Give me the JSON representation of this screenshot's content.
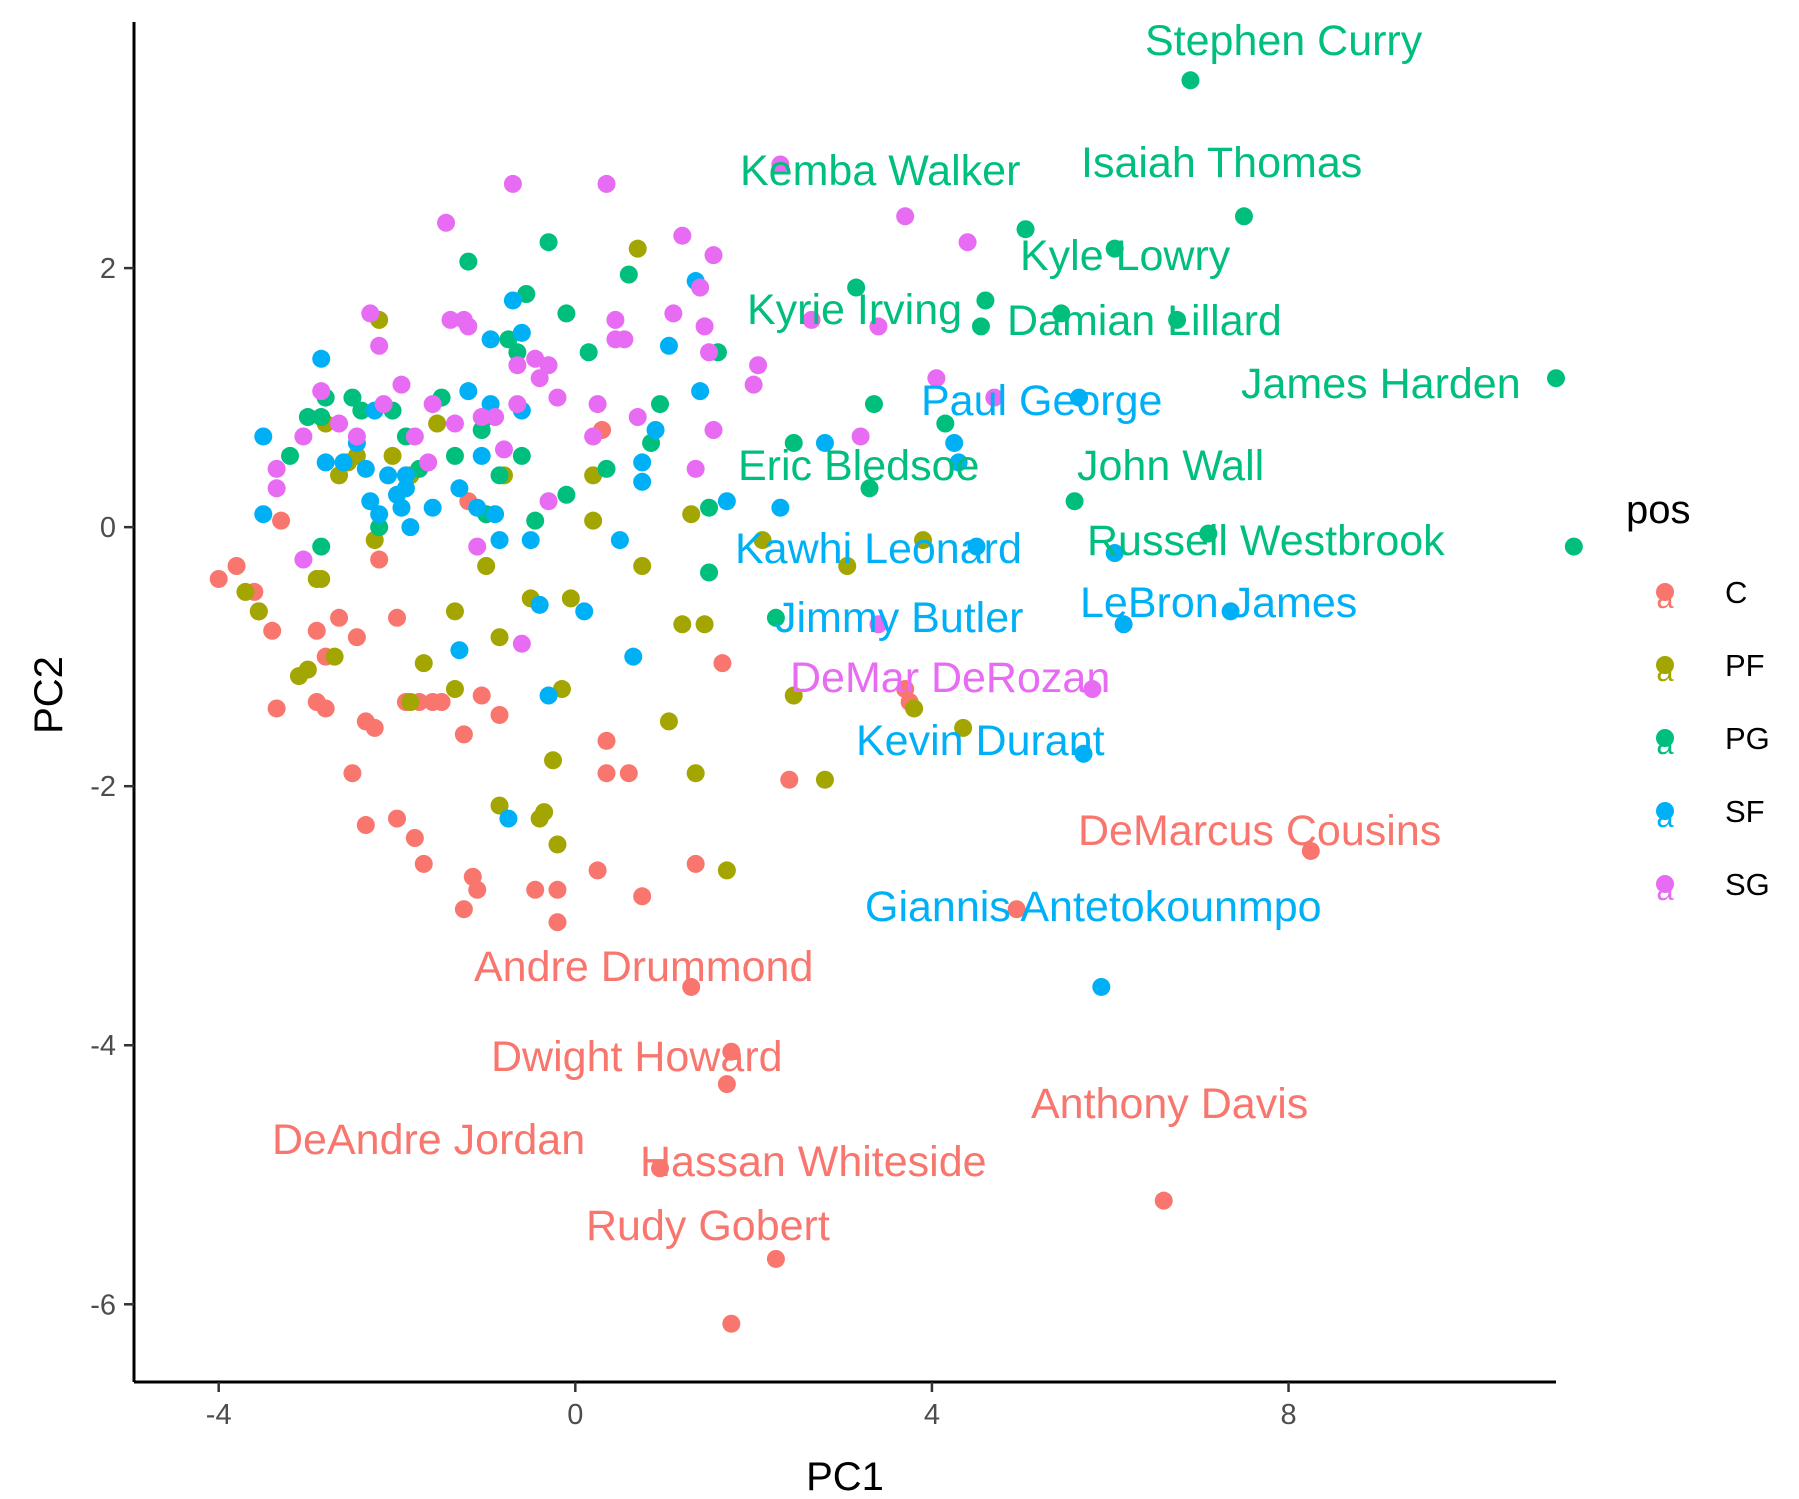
{
  "chart_data": {
    "type": "scatter",
    "xlabel": "PC1",
    "ylabel": "PC2",
    "xlim": [
      -4.95,
      11.0
    ],
    "ylim": [
      -6.6,
      3.9
    ],
    "x_ticks": [
      -4,
      0,
      4,
      8
    ],
    "y_ticks": [
      -6,
      -4,
      -2,
      0,
      2
    ],
    "x_tick_labels": [
      "-4",
      "0",
      "4",
      "8"
    ],
    "y_tick_labels": [
      "-6",
      "-4",
      "-2",
      "0",
      "2"
    ],
    "grid": false,
    "legend": {
      "title": "pos",
      "placement": "right",
      "entries": [
        {
          "label": "C",
          "color": "#F8766D"
        },
        {
          "label": "PF",
          "color": "#A3A500"
        },
        {
          "label": "PG",
          "color": "#00BF7D"
        },
        {
          "label": "SF",
          "color": "#00B0F6"
        },
        {
          "label": "SG",
          "color": "#E76BF3"
        }
      ],
      "key_glyph": "a"
    },
    "series": [
      {
        "name": "C",
        "color": "#F8766D",
        "points": [
          [
            -4.0,
            -0.4
          ],
          [
            -3.8,
            -0.3
          ],
          [
            -3.6,
            -0.5
          ],
          [
            -3.4,
            -0.8
          ],
          [
            -3.55,
            -0.65
          ],
          [
            -3.35,
            -1.4
          ],
          [
            -3.3,
            0.05
          ],
          [
            -2.9,
            -0.8
          ],
          [
            -2.8,
            -1.0
          ],
          [
            -2.9,
            -1.35
          ],
          [
            -2.8,
            -1.4
          ],
          [
            -2.65,
            -0.7
          ],
          [
            -2.45,
            -0.85
          ],
          [
            -2.35,
            -1.5
          ],
          [
            -2.25,
            -1.55
          ],
          [
            -2.5,
            -1.9
          ],
          [
            -2.35,
            -2.3
          ],
          [
            -2.2,
            -0.25
          ],
          [
            -2.0,
            -0.7
          ],
          [
            -1.9,
            -1.35
          ],
          [
            -1.75,
            -1.35
          ],
          [
            -1.6,
            -1.35
          ],
          [
            -1.5,
            -1.35
          ],
          [
            -2.0,
            -2.25
          ],
          [
            -1.8,
            -2.4
          ],
          [
            -1.7,
            -2.6
          ],
          [
            -1.25,
            -1.6
          ],
          [
            -1.05,
            -1.3
          ],
          [
            -0.85,
            -1.45
          ],
          [
            -1.15,
            -2.7
          ],
          [
            -1.1,
            -2.8
          ],
          [
            -1.25,
            -2.95
          ],
          [
            -0.45,
            -2.8
          ],
          [
            -0.2,
            -2.8
          ],
          [
            -0.2,
            -3.05
          ],
          [
            -1.2,
            0.2
          ],
          [
            0.3,
            0.75
          ],
          [
            0.35,
            -1.65
          ],
          [
            0.35,
            -1.9
          ],
          [
            0.6,
            -1.9
          ],
          [
            0.25,
            -2.65
          ],
          [
            0.75,
            -2.85
          ],
          [
            1.35,
            -2.6
          ],
          [
            1.65,
            -1.05
          ],
          [
            2.4,
            -1.95
          ],
          [
            3.7,
            -1.25
          ],
          [
            3.75,
            -1.35
          ],
          [
            1.3,
            -3.55
          ],
          [
            1.75,
            -4.05
          ],
          [
            1.7,
            -4.3
          ],
          [
            0.95,
            -4.95
          ],
          [
            2.25,
            -5.65
          ],
          [
            1.75,
            -6.15
          ],
          [
            4.95,
            -2.95
          ],
          [
            8.25,
            -2.5
          ],
          [
            6.6,
            -5.2
          ]
        ]
      },
      {
        "name": "PF",
        "color": "#A3A500",
        "points": [
          [
            -3.7,
            -0.5
          ],
          [
            -3.55,
            -0.65
          ],
          [
            -3.1,
            -1.15
          ],
          [
            -3.0,
            -1.1
          ],
          [
            -2.9,
            -0.4
          ],
          [
            -2.85,
            -0.4
          ],
          [
            -2.7,
            -1.0
          ],
          [
            -2.8,
            0.8
          ],
          [
            -2.65,
            0.4
          ],
          [
            -2.55,
            0.5
          ],
          [
            -2.45,
            0.55
          ],
          [
            -2.2,
            1.6
          ],
          [
            -2.25,
            -0.1
          ],
          [
            -2.05,
            0.55
          ],
          [
            -1.85,
            0.4
          ],
          [
            -1.7,
            -1.05
          ],
          [
            -1.85,
            -1.35
          ],
          [
            -1.55,
            0.8
          ],
          [
            -1.35,
            -0.65
          ],
          [
            -1.35,
            -1.25
          ],
          [
            -1.0,
            -0.3
          ],
          [
            -0.85,
            -0.85
          ],
          [
            -0.85,
            -2.15
          ],
          [
            -0.5,
            -0.55
          ],
          [
            -0.4,
            -2.25
          ],
          [
            -0.35,
            -2.2
          ],
          [
            -0.2,
            -2.45
          ],
          [
            -0.15,
            -1.25
          ],
          [
            -0.25,
            -1.8
          ],
          [
            -0.05,
            -0.55
          ],
          [
            0.2,
            0.05
          ],
          [
            0.2,
            0.4
          ],
          [
            0.7,
            2.15
          ],
          [
            0.75,
            -0.3
          ],
          [
            1.05,
            -1.5
          ],
          [
            1.2,
            -0.75
          ],
          [
            1.35,
            -1.9
          ],
          [
            1.45,
            -0.75
          ],
          [
            1.7,
            -2.65
          ],
          [
            2.1,
            -0.1
          ],
          [
            2.45,
            -1.3
          ],
          [
            2.8,
            -1.95
          ],
          [
            3.05,
            -0.3
          ],
          [
            3.8,
            -1.4
          ],
          [
            3.9,
            -0.1
          ],
          [
            4.35,
            -1.55
          ],
          [
            -0.8,
            0.4
          ],
          [
            1.3,
            0.1
          ]
        ]
      },
      {
        "name": "PG",
        "color": "#00BF7D",
        "points": [
          [
            -3.2,
            0.55
          ],
          [
            -3.0,
            0.85
          ],
          [
            -2.85,
            0.85
          ],
          [
            -2.8,
            1.0
          ],
          [
            -2.85,
            -0.15
          ],
          [
            -2.5,
            1.0
          ],
          [
            -2.4,
            0.9
          ],
          [
            -2.2,
            0.0
          ],
          [
            -2.05,
            0.9
          ],
          [
            -1.9,
            0.7
          ],
          [
            -1.75,
            0.45
          ],
          [
            -1.5,
            1.0
          ],
          [
            -1.35,
            0.55
          ],
          [
            -1.2,
            2.05
          ],
          [
            -1.0,
            0.1
          ],
          [
            -1.05,
            0.75
          ],
          [
            -0.85,
            0.4
          ],
          [
            -0.75,
            1.45
          ],
          [
            -0.6,
            0.55
          ],
          [
            -0.45,
            0.05
          ],
          [
            -0.55,
            1.8
          ],
          [
            -0.3,
            2.2
          ],
          [
            -0.1,
            1.65
          ],
          [
            -0.1,
            0.25
          ],
          [
            0.15,
            1.35
          ],
          [
            0.35,
            0.45
          ],
          [
            0.6,
            1.95
          ],
          [
            0.85,
            0.65
          ],
          [
            0.95,
            0.95
          ],
          [
            1.5,
            0.15
          ],
          [
            1.5,
            -0.35
          ],
          [
            1.6,
            1.35
          ],
          [
            2.25,
            -0.7
          ],
          [
            2.45,
            0.65
          ],
          [
            3.15,
            1.85
          ],
          [
            3.3,
            0.3
          ],
          [
            3.35,
            0.95
          ],
          [
            4.15,
            0.8
          ],
          [
            4.55,
            1.55
          ],
          [
            4.6,
            1.75
          ],
          [
            5.05,
            2.3
          ],
          [
            5.45,
            1.65
          ],
          [
            5.6,
            0.2
          ],
          [
            6.05,
            2.15
          ],
          [
            6.75,
            1.6
          ],
          [
            7.1,
            -0.05
          ],
          [
            7.5,
            2.4
          ],
          [
            6.9,
            3.45
          ],
          [
            11.0,
            1.15
          ],
          [
            11.2,
            -0.15
          ],
          [
            -1.0,
            0.85
          ],
          [
            -0.65,
            1.35
          ]
        ]
      },
      {
        "name": "SF",
        "color": "#00B0F6",
        "points": [
          [
            -3.5,
            0.7
          ],
          [
            -3.5,
            0.1
          ],
          [
            -2.85,
            1.3
          ],
          [
            -2.8,
            0.5
          ],
          [
            -2.6,
            0.5
          ],
          [
            -2.45,
            0.65
          ],
          [
            -2.35,
            0.45
          ],
          [
            -2.3,
            0.2
          ],
          [
            -2.25,
            0.9
          ],
          [
            -2.2,
            0.1
          ],
          [
            -2.1,
            0.4
          ],
          [
            -2.0,
            0.25
          ],
          [
            -1.9,
            0.4
          ],
          [
            -1.9,
            0.3
          ],
          [
            -1.95,
            0.15
          ],
          [
            -1.85,
            0.0
          ],
          [
            -1.6,
            0.15
          ],
          [
            -1.3,
            0.3
          ],
          [
            -1.2,
            1.05
          ],
          [
            -1.1,
            0.15
          ],
          [
            -1.05,
            0.55
          ],
          [
            -0.95,
            0.95
          ],
          [
            -0.9,
            0.1
          ],
          [
            -0.85,
            -0.1
          ],
          [
            -0.7,
            1.75
          ],
          [
            -0.6,
            1.5
          ],
          [
            -0.6,
            0.9
          ],
          [
            -0.5,
            -0.1
          ],
          [
            -0.4,
            -0.6
          ],
          [
            -0.3,
            -1.3
          ],
          [
            0.1,
            -0.65
          ],
          [
            0.5,
            -0.1
          ],
          [
            0.65,
            -1.0
          ],
          [
            0.75,
            0.35
          ],
          [
            0.75,
            0.5
          ],
          [
            0.9,
            0.75
          ],
          [
            1.05,
            1.4
          ],
          [
            1.35,
            1.9
          ],
          [
            1.4,
            1.05
          ],
          [
            1.7,
            0.2
          ],
          [
            2.3,
            0.15
          ],
          [
            2.8,
            0.65
          ],
          [
            4.25,
            0.65
          ],
          [
            4.3,
            0.5
          ],
          [
            4.5,
            -0.15
          ],
          [
            5.65,
            1.0
          ],
          [
            6.05,
            -0.2
          ],
          [
            6.15,
            -0.75
          ],
          [
            5.7,
            -1.75
          ],
          [
            7.35,
            -0.65
          ],
          [
            5.9,
            -3.55
          ],
          [
            -0.75,
            -2.25
          ],
          [
            -1.3,
            -0.95
          ],
          [
            -0.95,
            1.45
          ]
        ]
      },
      {
        "name": "SG",
        "color": "#E76BF3",
        "points": [
          [
            -3.35,
            0.45
          ],
          [
            -3.35,
            0.3
          ],
          [
            -3.05,
            0.7
          ],
          [
            -2.85,
            1.05
          ],
          [
            -2.65,
            0.8
          ],
          [
            -2.45,
            0.7
          ],
          [
            -2.3,
            1.65
          ],
          [
            -2.2,
            1.4
          ],
          [
            -2.15,
            0.95
          ],
          [
            -1.95,
            1.1
          ],
          [
            -1.8,
            0.7
          ],
          [
            -1.65,
            0.5
          ],
          [
            -1.6,
            0.95
          ],
          [
            -1.45,
            2.35
          ],
          [
            -1.4,
            1.6
          ],
          [
            -1.35,
            0.8
          ],
          [
            -1.25,
            1.6
          ],
          [
            -1.2,
            1.55
          ],
          [
            -1.05,
            0.85
          ],
          [
            -0.9,
            0.85
          ],
          [
            -0.8,
            0.6
          ],
          [
            -0.65,
            0.95
          ],
          [
            -0.65,
            1.25
          ],
          [
            -0.45,
            1.3
          ],
          [
            -0.4,
            1.15
          ],
          [
            -0.3,
            0.2
          ],
          [
            -0.3,
            1.25
          ],
          [
            -0.2,
            1.0
          ],
          [
            0.2,
            0.7
          ],
          [
            0.25,
            0.95
          ],
          [
            0.35,
            2.65
          ],
          [
            0.45,
            1.6
          ],
          [
            0.45,
            1.45
          ],
          [
            0.55,
            1.45
          ],
          [
            0.7,
            0.85
          ],
          [
            1.1,
            1.65
          ],
          [
            1.2,
            2.25
          ],
          [
            1.35,
            0.45
          ],
          [
            1.4,
            1.85
          ],
          [
            1.45,
            1.55
          ],
          [
            1.5,
            1.35
          ],
          [
            1.55,
            0.75
          ],
          [
            1.55,
            2.1
          ],
          [
            2.0,
            1.1
          ],
          [
            2.05,
            1.25
          ],
          [
            2.3,
            2.8
          ],
          [
            2.65,
            1.6
          ],
          [
            3.2,
            0.7
          ],
          [
            3.4,
            -0.75
          ],
          [
            3.4,
            1.55
          ],
          [
            3.7,
            2.4
          ],
          [
            4.05,
            1.15
          ],
          [
            4.4,
            2.2
          ],
          [
            4.7,
            1.0
          ],
          [
            5.8,
            -1.25
          ],
          [
            -3.05,
            -0.25
          ],
          [
            -0.6,
            -0.9
          ],
          [
            -0.7,
            2.65
          ],
          [
            -1.1,
            -0.15
          ]
        ]
      }
    ],
    "labels": [
      {
        "text": "Stephen Curry",
        "series": "PG"
      },
      {
        "text": "Kemba Walker",
        "series": "PG"
      },
      {
        "text": "Isaiah Thomas",
        "series": "PG"
      },
      {
        "text": "Kyle Lowry",
        "series": "PG"
      },
      {
        "text": "Kyrie Irving",
        "series": "PG"
      },
      {
        "text": "Damian Lillard",
        "series": "PG"
      },
      {
        "text": "James Harden",
        "series": "PG"
      },
      {
        "text": "Paul George",
        "series": "SF"
      },
      {
        "text": "Eric Bledsoe",
        "series": "PG"
      },
      {
        "text": "John Wall",
        "series": "PG"
      },
      {
        "text": "Russell Westbrook",
        "series": "PG"
      },
      {
        "text": "Kawhi Leonard",
        "series": "SF"
      },
      {
        "text": "LeBron James",
        "series": "SF"
      },
      {
        "text": "Jimmy Butler",
        "series": "SF"
      },
      {
        "text": "DeMar DeRozan",
        "series": "SG"
      },
      {
        "text": "Kevin Durant",
        "series": "SF"
      },
      {
        "text": "DeMarcus Cousins",
        "series": "C"
      },
      {
        "text": "Giannis Antetokounmpo",
        "series": "SF"
      },
      {
        "text": "Andre Drummond",
        "series": "C"
      },
      {
        "text": "Dwight Howard",
        "series": "C"
      },
      {
        "text": "Anthony Davis",
        "series": "C"
      },
      {
        "text": "DeAndre Jordan",
        "series": "C"
      },
      {
        "text": "Hassan Whiteside",
        "series": "C"
      },
      {
        "text": "Rudy Gobert",
        "series": "C"
      }
    ]
  }
}
